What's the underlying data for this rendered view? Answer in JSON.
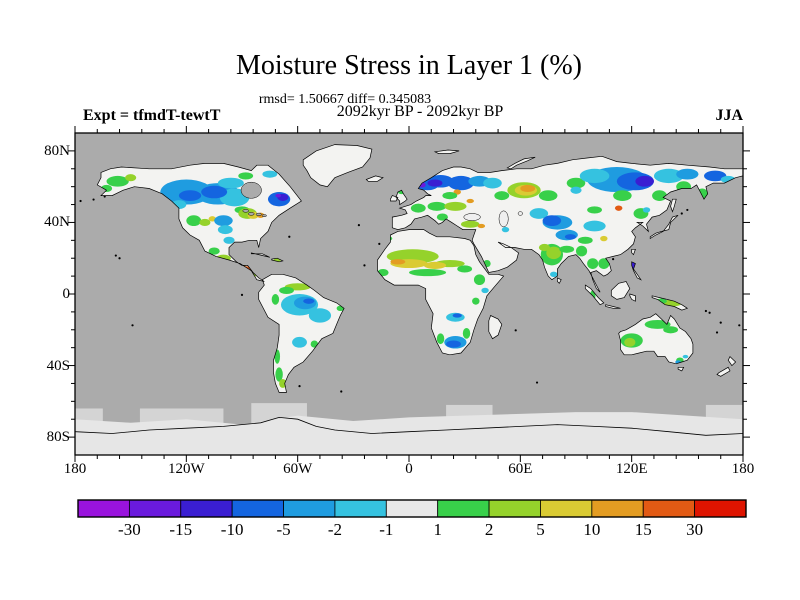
{
  "chart_data": {
    "type": "heatmap",
    "subtype": "filled-contour-world-map-difference-plot",
    "title": "Moisture Stress in Layer 1 (%)",
    "stats_line": "rmsd= 1.50667 diff= 0.345083",
    "rmsd": 1.50667,
    "diff": 0.345083,
    "period_line": "2092kyr BP - 2092kyr BP",
    "experiment_label": "Expt = tfmdT-tewtT",
    "season_label": "JJA",
    "projection": "equirectangular",
    "lon_range": [
      -180,
      180
    ],
    "lat_range": [
      -90,
      90
    ],
    "x_ticks": [
      {
        "label": "180",
        "lon": -180
      },
      {
        "label": "120W",
        "lon": -120
      },
      {
        "label": "60W",
        "lon": -60
      },
      {
        "label": "0",
        "lon": 0
      },
      {
        "label": "60E",
        "lon": 60
      },
      {
        "label": "120E",
        "lon": 120
      },
      {
        "label": "180",
        "lon": 180
      }
    ],
    "y_ticks": [
      {
        "label": "80N",
        "lat": 80
      },
      {
        "label": "40N",
        "lat": 40
      },
      {
        "label": "0",
        "lat": 0
      },
      {
        "label": "40S",
        "lat": -40
      },
      {
        "label": "80S",
        "lat": -80
      }
    ],
    "colorbar": {
      "unit": "%",
      "boundary_labels": [
        "-30",
        "-15",
        "-10",
        "-5",
        "-2",
        "-1",
        "1",
        "2",
        "5",
        "10",
        "15",
        "30"
      ],
      "colors": [
        "#9913DD",
        "#6A1ADD",
        "#3A1ED2",
        "#1465E0",
        "#1F9CE0",
        "#35C2E0",
        "#E8E8E8",
        "#38D04A",
        "#95D22B",
        "#DACB33",
        "#E39C22",
        "#E25A14",
        "#DE1400"
      ]
    },
    "map_colors": {
      "ocean": "#ABABAB",
      "land": "#F3F3F1",
      "antarctica": "#E6E6E6",
      "ice_shelf": "#D4D4D4",
      "coast": "#000000"
    },
    "anomaly_regions": [
      [
        -157,
        63,
        6,
        3,
        7
      ],
      [
        -150,
        65,
        3,
        2,
        8
      ],
      [
        -163,
        59,
        3,
        2,
        7
      ],
      [
        -120,
        57,
        14,
        7,
        4
      ],
      [
        -103,
        56,
        12,
        6,
        4
      ],
      [
        -94,
        54,
        8,
        5,
        5
      ],
      [
        -96,
        62,
        7,
        3,
        5
      ],
      [
        -118,
        55,
        6,
        3,
        3
      ],
      [
        -105,
        57,
        7,
        3.5,
        3
      ],
      [
        -124,
        50,
        4,
        2.5,
        5
      ],
      [
        -88,
        66,
        4,
        2,
        7
      ],
      [
        -75,
        67,
        4,
        2,
        5
      ],
      [
        -70,
        53,
        6,
        4,
        3
      ],
      [
        -68,
        54,
        3,
        2,
        2
      ],
      [
        -70.5,
        55,
        1.5,
        1,
        1
      ],
      [
        -60,
        47,
        3,
        2,
        5
      ],
      [
        -116,
        41,
        4,
        3,
        7
      ],
      [
        -110,
        40,
        3,
        2,
        8
      ],
      [
        -106,
        42,
        2,
        1.5,
        9
      ],
      [
        -100,
        41,
        5,
        3,
        4
      ],
      [
        -99,
        36,
        4,
        2.5,
        5
      ],
      [
        -90,
        47,
        4,
        2,
        7
      ],
      [
        -87,
        45,
        5,
        3,
        8
      ],
      [
        -84,
        44,
        3,
        2,
        9
      ],
      [
        -80,
        44,
        2,
        1.5,
        10
      ],
      [
        -97,
        30,
        3,
        2,
        5
      ],
      [
        -105,
        24,
        3,
        2,
        7
      ],
      [
        -100,
        20,
        4,
        2,
        8
      ],
      [
        -92,
        16,
        4,
        2,
        10
      ],
      [
        -88,
        14,
        3,
        1.5,
        11
      ],
      [
        -84,
        11,
        2,
        1.5,
        8
      ],
      [
        -77,
        20,
        3,
        1.2,
        7
      ],
      [
        -71,
        19,
        2,
        1,
        8
      ],
      [
        -60,
        4,
        7,
        2,
        8
      ],
      [
        -66,
        2,
        4,
        2,
        7
      ],
      [
        -59,
        -6,
        10,
        6,
        5
      ],
      [
        -56,
        -5,
        6,
        3.5,
        4
      ],
      [
        -54,
        -4,
        3,
        1.5,
        3
      ],
      [
        -48,
        -12,
        6,
        4,
        5
      ],
      [
        -37,
        -8,
        2,
        1.5,
        7
      ],
      [
        -72,
        -3,
        2,
        3,
        7
      ],
      [
        -59,
        -27,
        4,
        3,
        5
      ],
      [
        -51,
        -28,
        2,
        2,
        7
      ],
      [
        -71,
        -35,
        1.5,
        4,
        7
      ],
      [
        -70,
        -45,
        2,
        4,
        7
      ],
      [
        -68,
        -50,
        2,
        2.5,
        8
      ],
      [
        -12,
        31,
        3,
        1.5,
        7
      ],
      [
        2,
        21,
        14,
        4,
        8
      ],
      [
        22,
        17,
        8,
        2,
        8
      ],
      [
        0,
        17,
        10,
        2.5,
        9
      ],
      [
        14,
        16,
        6,
        2,
        9
      ],
      [
        -6,
        18,
        4,
        1.5,
        10
      ],
      [
        10,
        12,
        10,
        2,
        7
      ],
      [
        -14,
        12,
        3,
        2,
        7
      ],
      [
        30,
        14,
        4,
        2,
        7
      ],
      [
        38,
        8,
        3,
        3,
        7
      ],
      [
        41,
        2,
        2,
        1.5,
        5
      ],
      [
        36,
        -4,
        2,
        2,
        7
      ],
      [
        25,
        -13,
        5,
        2.5,
        5
      ],
      [
        26,
        -12,
        2.5,
        1.2,
        3
      ],
      [
        25,
        -27,
        6,
        3.5,
        4
      ],
      [
        24,
        -28,
        4,
        2,
        3
      ],
      [
        31,
        -22,
        2,
        3,
        7
      ],
      [
        17,
        -25,
        2,
        3,
        7
      ],
      [
        10,
        61,
        6,
        3,
        3
      ],
      [
        17,
        63,
        7,
        3.5,
        3
      ],
      [
        14,
        62,
        4,
        2,
        2
      ],
      [
        7,
        61,
        2,
        1.5,
        1
      ],
      [
        28,
        62,
        7,
        4,
        3
      ],
      [
        38,
        63,
        6,
        3,
        4
      ],
      [
        45,
        62,
        5,
        3,
        5
      ],
      [
        26,
        57,
        2,
        1.5,
        10
      ],
      [
        22,
        55,
        4,
        2,
        7
      ],
      [
        5,
        48,
        4,
        2.5,
        7
      ],
      [
        15,
        49,
        5,
        2.5,
        7
      ],
      [
        25,
        49,
        6,
        2.5,
        8
      ],
      [
        33,
        52,
        2,
        1.2,
        10
      ],
      [
        18,
        43,
        3,
        2,
        7
      ],
      [
        -4,
        57,
        2,
        1.2,
        7
      ],
      [
        33,
        39,
        5,
        2,
        8
      ],
      [
        39,
        38,
        2,
        1.2,
        10
      ],
      [
        62,
        58,
        9,
        4.5,
        8
      ],
      [
        63,
        58,
        6,
        3,
        9
      ],
      [
        64,
        59,
        4,
        2,
        10
      ],
      [
        50,
        55,
        4,
        2.5,
        7
      ],
      [
        75,
        55,
        5,
        3,
        7
      ],
      [
        90,
        62,
        5,
        3,
        7
      ],
      [
        112,
        64,
        16,
        7,
        4
      ],
      [
        122,
        63,
        10,
        5,
        3
      ],
      [
        127,
        63,
        5,
        3,
        2
      ],
      [
        100,
        66,
        8,
        4,
        5
      ],
      [
        140,
        66,
        8,
        4,
        5
      ],
      [
        150,
        67,
        6,
        3,
        4
      ],
      [
        165,
        66,
        6,
        3,
        3
      ],
      [
        172,
        64,
        4,
        2,
        5
      ],
      [
        158,
        56,
        3,
        3,
        7
      ],
      [
        148,
        60,
        4,
        3,
        7
      ],
      [
        135,
        55,
        4,
        3,
        7
      ],
      [
        115,
        55,
        5,
        3,
        7
      ],
      [
        90,
        58,
        3,
        2,
        5
      ],
      [
        70,
        45,
        5,
        3,
        5
      ],
      [
        80,
        40,
        8,
        4,
        4
      ],
      [
        77,
        41,
        5,
        3,
        3
      ],
      [
        100,
        38,
        6,
        3,
        5
      ],
      [
        85,
        33,
        6,
        3,
        4
      ],
      [
        87,
        32,
        3,
        1.5,
        3
      ],
      [
        95,
        30,
        4,
        2,
        7
      ],
      [
        105,
        31,
        2,
        1.5,
        9
      ],
      [
        100,
        47,
        4,
        2,
        7
      ],
      [
        113,
        48,
        2,
        1.5,
        11
      ],
      [
        125,
        45,
        4,
        3,
        7
      ],
      [
        128,
        47,
        2,
        1.5,
        5
      ],
      [
        52,
        36,
        2,
        1.5,
        5
      ],
      [
        42,
        17,
        2,
        2,
        7
      ],
      [
        77,
        22,
        6,
        6,
        7
      ],
      [
        78,
        23,
        4,
        3.5,
        8
      ],
      [
        73,
        26,
        3,
        2,
        8
      ],
      [
        78,
        11,
        2,
        1.5,
        5
      ],
      [
        85,
        25,
        4,
        2,
        7
      ],
      [
        93,
        24,
        3,
        3,
        7
      ],
      [
        99,
        17,
        3,
        3,
        7
      ],
      [
        105,
        17,
        3,
        3,
        7
      ],
      [
        99,
        -1,
        1.5,
        3,
        7
      ],
      [
        121,
        16,
        1.5,
        1.8,
        2
      ],
      [
        142,
        -5,
        5,
        2,
        8
      ],
      [
        136,
        -4,
        3,
        1.5,
        7
      ],
      [
        120,
        -26,
        6,
        4,
        7
      ],
      [
        119,
        -27,
        3,
        2.5,
        8
      ],
      [
        134,
        -17,
        7,
        2.5,
        7
      ],
      [
        141,
        -20,
        4,
        2,
        7
      ],
      [
        146,
        -37,
        2,
        1.5,
        7
      ],
      [
        145,
        -38,
        1.5,
        1,
        4
      ],
      [
        149,
        -35,
        1.5,
        1,
        5
      ]
    ]
  }
}
